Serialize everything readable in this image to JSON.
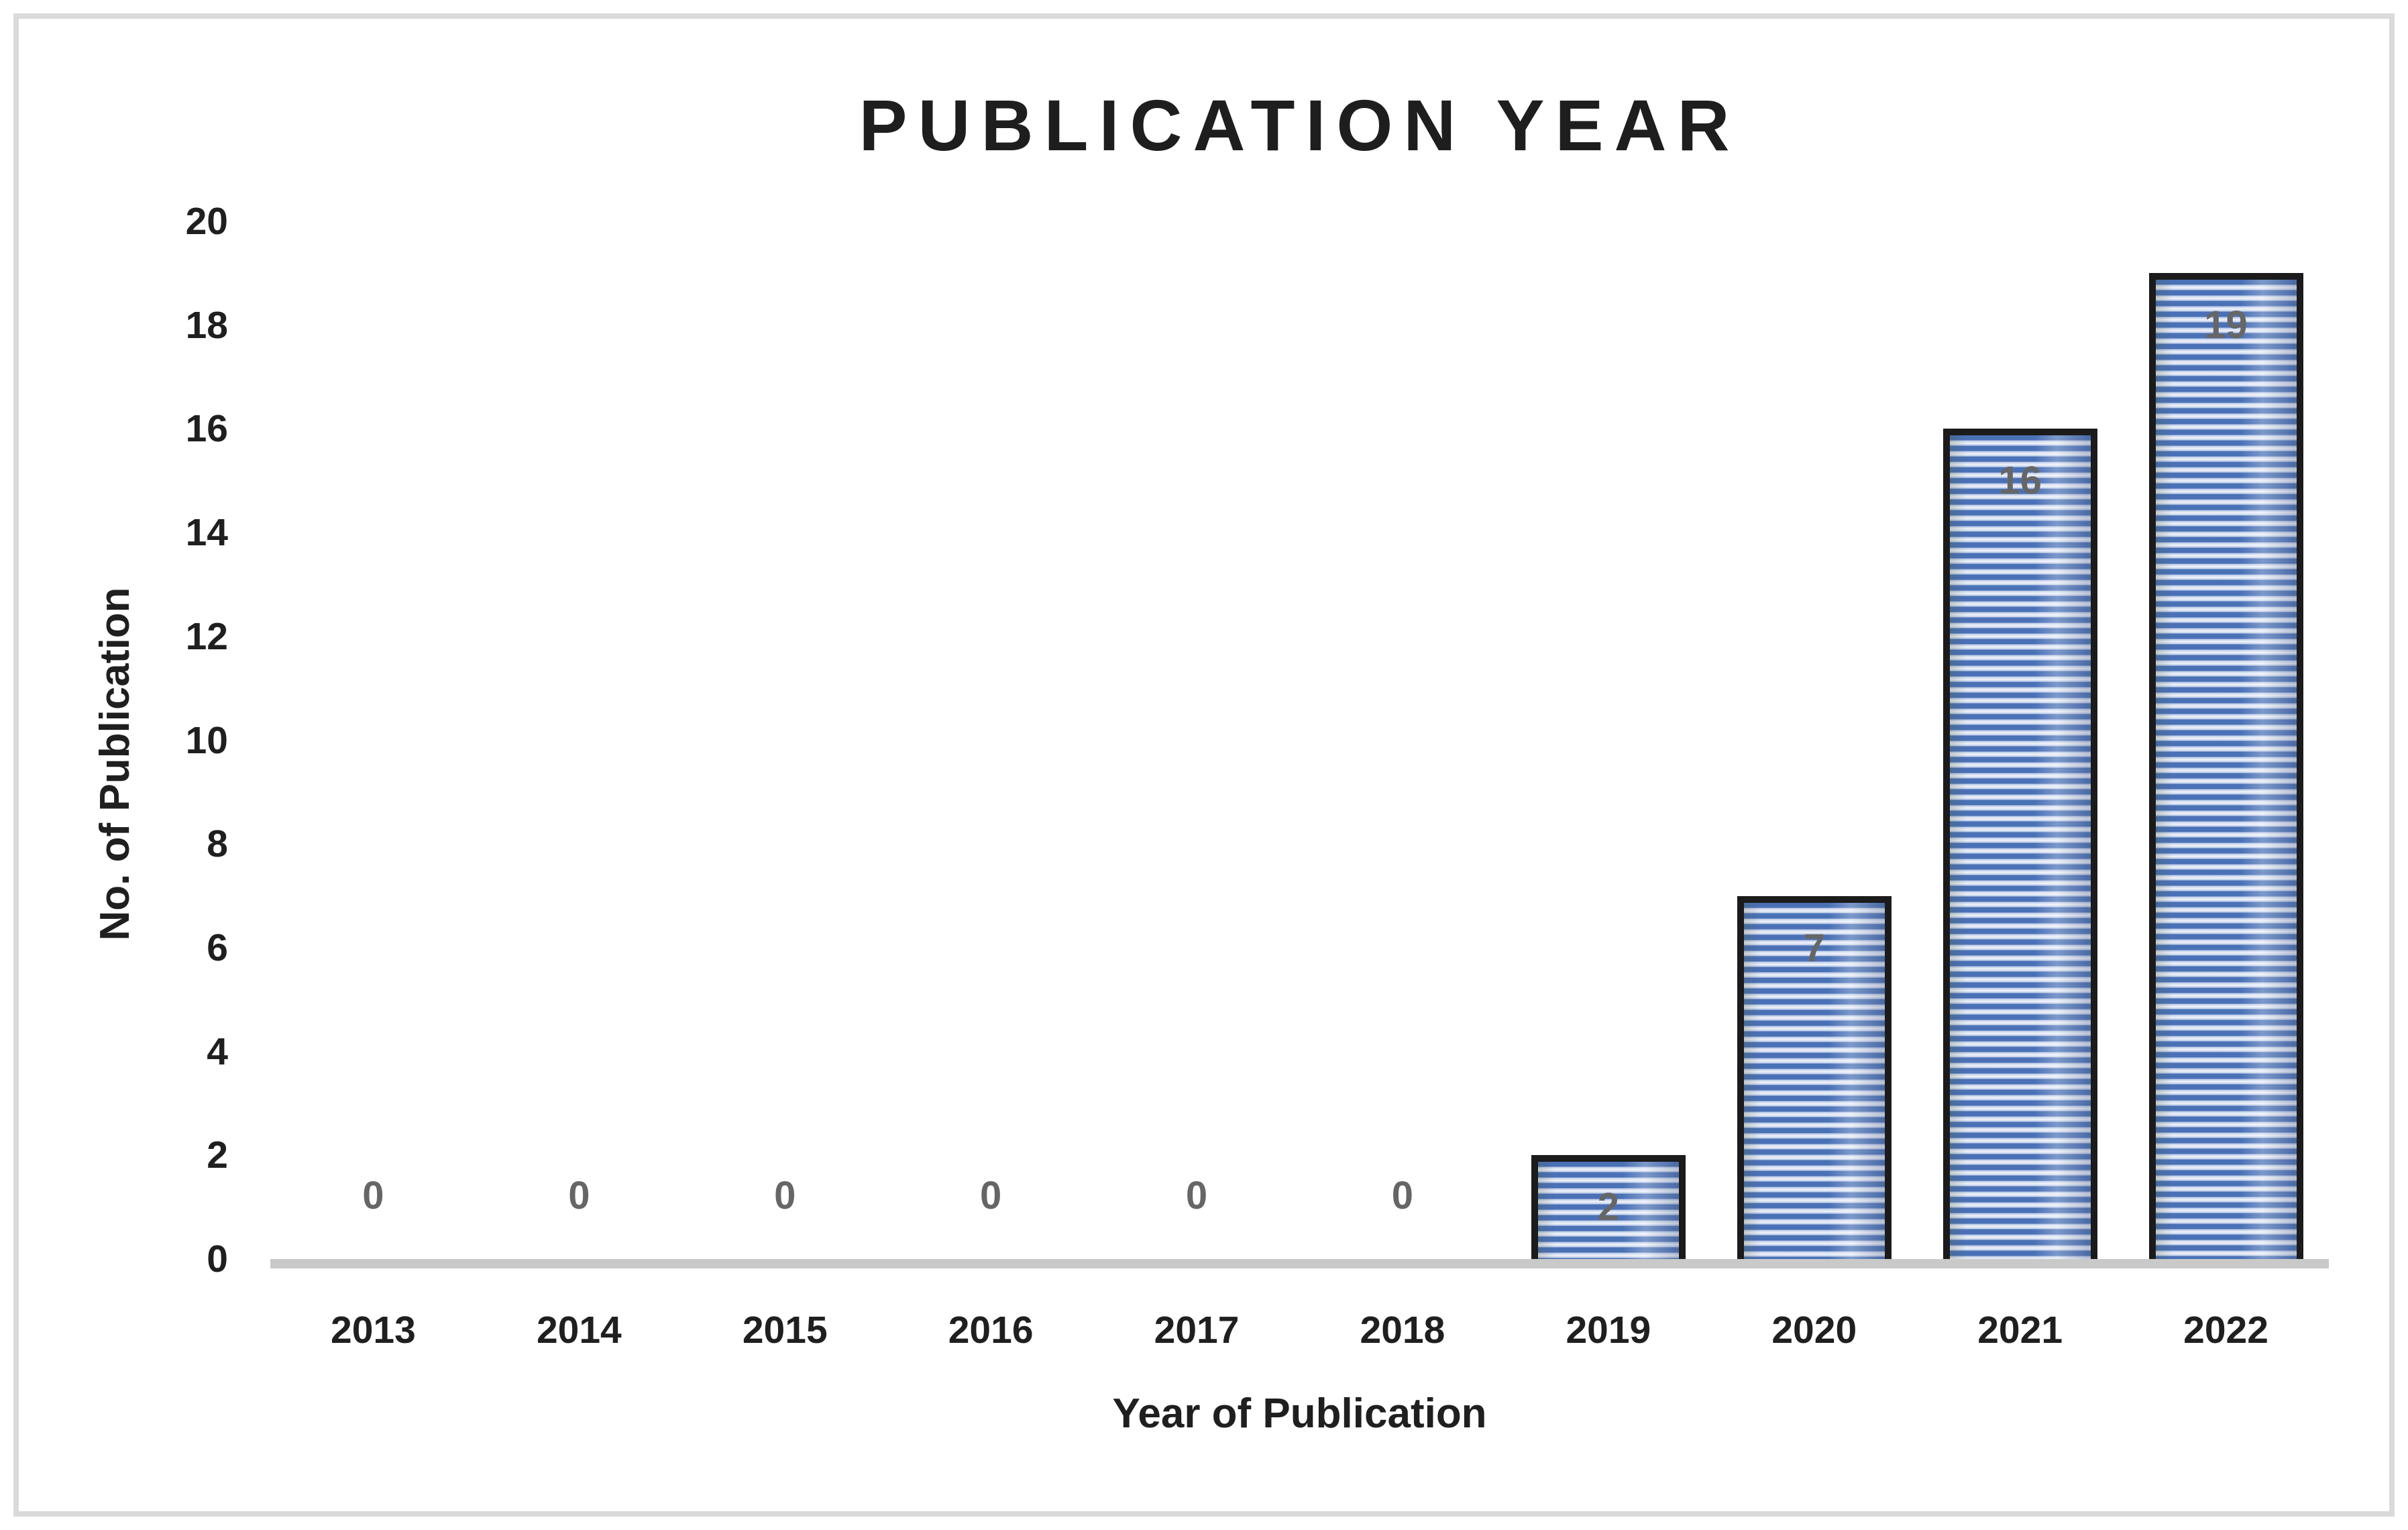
{
  "chart_data": {
    "type": "bar",
    "title": "PUBLICATION YEAR",
    "xlabel": "Year of Publication",
    "ylabel": "No. of Publication",
    "categories": [
      "2013",
      "2014",
      "2015",
      "2016",
      "2017",
      "2018",
      "2019",
      "2020",
      "2021",
      "2022"
    ],
    "values": [
      0,
      0,
      0,
      0,
      0,
      0,
      2,
      7,
      16,
      19
    ],
    "data_labels": [
      "0",
      "0",
      "0",
      "0",
      "0",
      "0",
      "2",
      "7",
      "16",
      "19"
    ],
    "ylim": [
      0,
      20
    ],
    "ytick_step": 2,
    "ytick_labels": [
      "0",
      "2",
      "4",
      "6",
      "8",
      "10",
      "12",
      "14",
      "16",
      "18",
      "20"
    ],
    "grid": false,
    "legend": "none",
    "colors": {
      "bar_stripe_blue": "#4A71B6",
      "bar_stripe_light": "#DBE3F3",
      "bar_border": "#1B1B1B",
      "data_label": "#666666",
      "axis_text": "#1F1F1F",
      "axis_line": "#C9C9C9",
      "frame_border": "#DADADA",
      "title": "#1E1E1E"
    }
  }
}
